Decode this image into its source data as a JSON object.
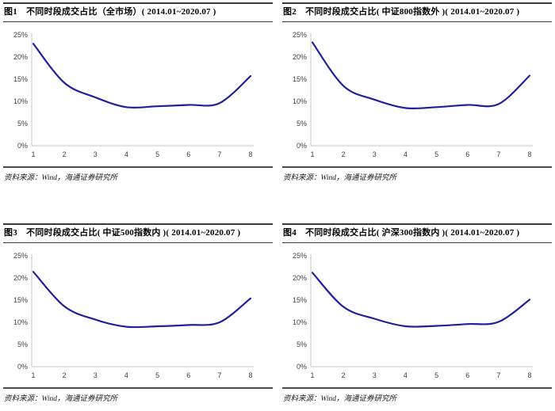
{
  "page": {
    "background": "#ffffff"
  },
  "style": {
    "line_color": "#1E219D",
    "axis_color": "#c6c6c6",
    "tick_color": "#404040",
    "title_rule_color": "#3a3a3a",
    "source_divider_color": "#4a4a4a"
  },
  "chart_data": [
    {
      "id": "fig1",
      "type": "line",
      "title": "图1　不同时段成交占比（全市场）( 2014.01~2020.07 )",
      "x": [
        1,
        2,
        3,
        4,
        5,
        6,
        7,
        8
      ],
      "values": [
        23.0,
        14.2,
        10.9,
        8.7,
        8.9,
        9.2,
        9.6,
        15.7
      ],
      "xlabel": "",
      "ylabel": "",
      "ylim": [
        0,
        25
      ],
      "y_tick_step": 5,
      "y_tick_suffix": "%",
      "grid": false,
      "legend": "none",
      "source": "资料来源：Wind，海通证券研究所"
    },
    {
      "id": "fig2",
      "type": "line",
      "title": "图2　不同时段成交占比( 中证800指数外 )( 2014.01~2020.07 )",
      "x": [
        1,
        2,
        3,
        4,
        5,
        6,
        7,
        8
      ],
      "values": [
        23.3,
        13.5,
        10.4,
        8.5,
        8.7,
        9.2,
        9.4,
        15.8
      ],
      "xlabel": "",
      "ylabel": "",
      "ylim": [
        0,
        25
      ],
      "y_tick_step": 5,
      "y_tick_suffix": "%",
      "grid": false,
      "legend": "none",
      "source": "资料来源：Wind，海通证券研究所"
    },
    {
      "id": "fig3",
      "type": "line",
      "title": "图3　不同时段成交占比( 中证500指数内 )( 2014.01~2020.07 )",
      "x": [
        1,
        2,
        3,
        4,
        5,
        6,
        7,
        8
      ],
      "values": [
        21.4,
        13.6,
        10.6,
        9.0,
        9.1,
        9.4,
        10.0,
        15.4
      ],
      "xlabel": "",
      "ylabel": "",
      "ylim": [
        0,
        25
      ],
      "y_tick_step": 5,
      "y_tick_suffix": "%",
      "grid": false,
      "legend": "none",
      "source": "资料来源：Wind，海通证券研究所"
    },
    {
      "id": "fig4",
      "type": "line",
      "title": "图4　不同时段成交占比( 沪深300指数内 )( 2014.01~2020.07 )",
      "x": [
        1,
        2,
        3,
        4,
        5,
        6,
        7,
        8
      ],
      "values": [
        21.2,
        13.5,
        10.8,
        9.1,
        9.2,
        9.6,
        10.1,
        15.1
      ],
      "xlabel": "",
      "ylabel": "",
      "ylim": [
        0,
        25
      ],
      "y_tick_step": 5,
      "y_tick_suffix": "%",
      "grid": false,
      "legend": "none",
      "source": "资料来源：Wind，海通证券研究所"
    }
  ]
}
